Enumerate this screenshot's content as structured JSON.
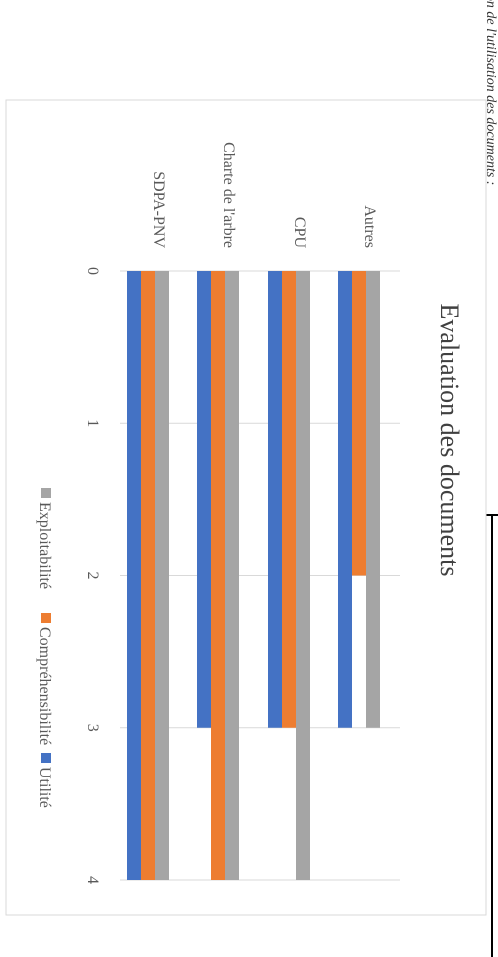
{
  "page_header_fragment": "ion de l'utilisation des documents :",
  "chart_data": {
    "type": "bar",
    "orientation": "horizontal",
    "title": "Evaluation des documents",
    "categories": [
      "Autres",
      "CPU",
      "Charte de l'arbre",
      "SDPA-PNV"
    ],
    "series": [
      {
        "name": "Exploitabilité",
        "color": "#a5a5a5",
        "values": [
          3,
          4,
          4,
          4
        ]
      },
      {
        "name": "Compréhensibilité",
        "color": "#ed7d31",
        "values": [
          2,
          3,
          4,
          4
        ]
      },
      {
        "name": "Utilité",
        "color": "#4472c4",
        "values": [
          3,
          3,
          3,
          4
        ]
      }
    ],
    "xlim": [
      0,
      4
    ],
    "ticks": [
      "0",
      "1",
      "2",
      "3",
      "4"
    ],
    "grid": true,
    "legend_position": "bottom",
    "rotation": "page rotated 90° clockwise"
  }
}
